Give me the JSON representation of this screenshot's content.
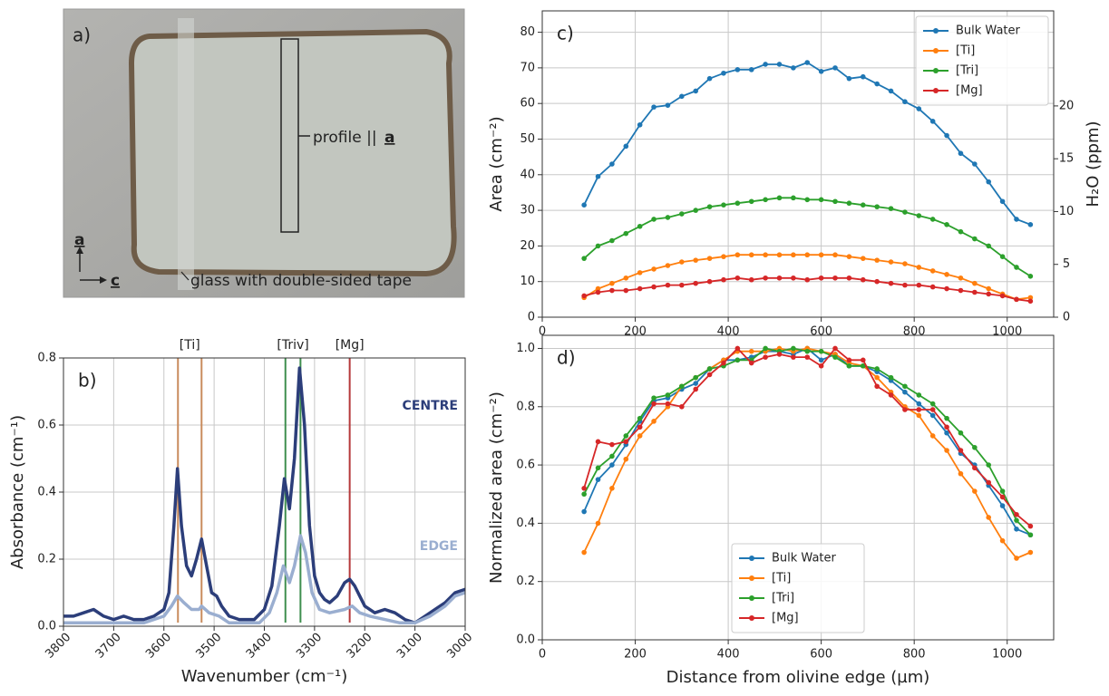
{
  "photo": {
    "panel_label": "a)",
    "profile_label": "profile ||",
    "profile_axis": "a",
    "axis_a": "a",
    "axis_c": "c",
    "glass_label": "glass with double-sided tape"
  },
  "chart_data": [
    {
      "type": "line",
      "panel_label": "b)",
      "xlabel": "Wavenumber (cm⁻¹)",
      "ylabel": "Absorbance (cm⁻¹)",
      "xlim": [
        3800,
        3000
      ],
      "xticks": [
        3800,
        3700,
        3600,
        3500,
        3400,
        3300,
        3200,
        3100,
        3000
      ],
      "ylim": [
        0,
        0.8
      ],
      "yticks": [
        {
          "value": 0,
          "label": "0.0"
        },
        0.2,
        0.4,
        0.6,
        0.8
      ],
      "grid": true,
      "annotations": [
        {
          "text": "[Ti]",
          "color": "#c98b5c",
          "x": [
            3572,
            3525
          ]
        },
        {
          "text": "[Triv]",
          "color": "#3f8f4f",
          "x": [
            3358,
            3328
          ]
        },
        {
          "text": "[Mg]",
          "color": "#b5393a",
          "x": [
            3230
          ]
        }
      ],
      "series": [
        {
          "name": "CENTRE",
          "color": "#2c3e7a",
          "x": [
            3800,
            3780,
            3760,
            3740,
            3720,
            3700,
            3680,
            3660,
            3640,
            3620,
            3600,
            3590,
            3580,
            3573,
            3565,
            3555,
            3545,
            3535,
            3525,
            3515,
            3505,
            3495,
            3485,
            3470,
            3450,
            3420,
            3400,
            3385,
            3370,
            3360,
            3350,
            3340,
            3330,
            3320,
            3310,
            3300,
            3290,
            3280,
            3270,
            3255,
            3240,
            3230,
            3220,
            3210,
            3200,
            3180,
            3160,
            3140,
            3120,
            3100,
            3080,
            3060,
            3040,
            3020,
            3000
          ],
          "values": [
            0.03,
            0.03,
            0.04,
            0.05,
            0.03,
            0.02,
            0.03,
            0.02,
            0.02,
            0.03,
            0.05,
            0.1,
            0.3,
            0.47,
            0.3,
            0.18,
            0.15,
            0.2,
            0.26,
            0.18,
            0.1,
            0.09,
            0.06,
            0.03,
            0.02,
            0.02,
            0.05,
            0.12,
            0.3,
            0.44,
            0.35,
            0.5,
            0.77,
            0.6,
            0.3,
            0.15,
            0.1,
            0.08,
            0.07,
            0.09,
            0.13,
            0.14,
            0.12,
            0.09,
            0.06,
            0.04,
            0.05,
            0.04,
            0.02,
            0.01,
            0.03,
            0.05,
            0.07,
            0.1,
            0.11
          ]
        },
        {
          "name": "EDGE",
          "color": "#9aaed0",
          "x": [
            3800,
            3760,
            3720,
            3680,
            3640,
            3600,
            3585,
            3573,
            3560,
            3545,
            3530,
            3525,
            3510,
            3490,
            3470,
            3440,
            3410,
            3390,
            3375,
            3362,
            3350,
            3340,
            3328,
            3318,
            3305,
            3290,
            3270,
            3240,
            3225,
            3210,
            3190,
            3160,
            3130,
            3100,
            3070,
            3040,
            3020,
            3000
          ],
          "values": [
            0.01,
            0.01,
            0.01,
            0.01,
            0.01,
            0.03,
            0.06,
            0.09,
            0.07,
            0.05,
            0.05,
            0.06,
            0.04,
            0.03,
            0.01,
            0.01,
            0.01,
            0.04,
            0.1,
            0.18,
            0.13,
            0.18,
            0.27,
            0.22,
            0.1,
            0.05,
            0.04,
            0.05,
            0.06,
            0.04,
            0.03,
            0.02,
            0.01,
            0.01,
            0.03,
            0.06,
            0.09,
            0.1
          ]
        }
      ]
    },
    {
      "type": "line",
      "panel_label": "c)",
      "ylabel": "Area (cm⁻²)",
      "y2label": "H₂O (ppm)",
      "xlim": [
        0,
        1100
      ],
      "xticks": [
        0,
        200,
        400,
        600,
        800,
        1000
      ],
      "ylim": [
        0,
        86
      ],
      "yticks": [
        0,
        10,
        20,
        30,
        40,
        50,
        60,
        70,
        80
      ],
      "y2lim": [
        0,
        29
      ],
      "y2ticks": [
        0,
        5,
        10,
        15,
        20
      ],
      "grid": true,
      "markers": true,
      "legend": "upper right",
      "x": [
        90,
        120,
        150,
        180,
        210,
        240,
        270,
        300,
        330,
        360,
        390,
        420,
        450,
        480,
        510,
        540,
        570,
        600,
        630,
        660,
        690,
        720,
        750,
        780,
        810,
        840,
        870,
        900,
        930,
        960,
        990,
        1020,
        1050
      ],
      "series": [
        {
          "name": "Bulk Water",
          "color": "#1f77b4",
          "values": [
            31.5,
            39.5,
            43,
            48,
            54,
            59,
            59.5,
            62,
            63.5,
            67,
            68.5,
            69.5,
            69.5,
            71,
            71,
            70,
            71.5,
            69,
            70,
            67,
            67.5,
            65.5,
            63.5,
            60.5,
            58.5,
            55,
            51,
            46,
            43,
            38,
            32.5,
            27.5,
            26
          ]
        },
        {
          "name": "[Ti]",
          "color": "#ff7f0e",
          "values": [
            5.5,
            8,
            9.5,
            11,
            12.5,
            13.5,
            14.5,
            15.5,
            16,
            16.5,
            17,
            17.5,
            17.5,
            17.5,
            17.5,
            17.5,
            17.5,
            17.5,
            17.5,
            17,
            16.5,
            16,
            15.5,
            15,
            14,
            13,
            12,
            11,
            9.5,
            8,
            6.5,
            5,
            5.5
          ]
        },
        {
          "name": "[Tri]",
          "color": "#2ca02c",
          "values": [
            16.5,
            20,
            21.5,
            23.5,
            25.5,
            27.5,
            28,
            29,
            30,
            31,
            31.5,
            32,
            32.5,
            33,
            33.5,
            33.5,
            33,
            33,
            32.5,
            32,
            31.5,
            31,
            30.5,
            29.5,
            28.5,
            27.5,
            26,
            24,
            22,
            20,
            17,
            14,
            11.5
          ]
        },
        {
          "name": "[Mg]",
          "color": "#d62728",
          "values": [
            6,
            7,
            7.5,
            7.5,
            8,
            8.5,
            9,
            9,
            9.5,
            10,
            10.5,
            11,
            10.5,
            11,
            11,
            11,
            10.5,
            11,
            11,
            11,
            10.5,
            10,
            9.5,
            9,
            9,
            8.5,
            8,
            7.5,
            7,
            6.5,
            6,
            5,
            4.5
          ]
        }
      ]
    },
    {
      "type": "line",
      "panel_label": "d)",
      "xlabel": "Distance from olivine edge (µm)",
      "ylabel": "Normalized area (cm⁻²)",
      "xlim": [
        0,
        1100
      ],
      "xticks": [
        0,
        200,
        400,
        600,
        800,
        1000
      ],
      "ylim": [
        0,
        1.045
      ],
      "yticks": [
        {
          "value": 0,
          "label": "0.0"
        },
        0.2,
        0.4,
        0.6,
        0.8,
        {
          "value": 1,
          "label": "1.0"
        }
      ],
      "grid": true,
      "markers": true,
      "legend": "lower center",
      "x": [
        90,
        120,
        150,
        180,
        210,
        240,
        270,
        300,
        330,
        360,
        390,
        420,
        450,
        480,
        510,
        540,
        570,
        600,
        630,
        660,
        690,
        720,
        750,
        780,
        810,
        840,
        870,
        900,
        930,
        960,
        990,
        1020,
        1050
      ],
      "series": [
        {
          "name": "Bulk Water",
          "color": "#1f77b4",
          "values": [
            0.44,
            0.55,
            0.6,
            0.67,
            0.75,
            0.82,
            0.83,
            0.86,
            0.88,
            0.93,
            0.96,
            0.96,
            0.97,
            0.99,
            0.99,
            0.98,
            1.0,
            0.96,
            0.98,
            0.94,
            0.94,
            0.92,
            0.89,
            0.85,
            0.81,
            0.77,
            0.71,
            0.64,
            0.6,
            0.53,
            0.46,
            0.38,
            0.36
          ]
        },
        {
          "name": "[Ti]",
          "color": "#ff7f0e",
          "values": [
            0.3,
            0.4,
            0.52,
            0.62,
            0.7,
            0.75,
            0.8,
            0.87,
            0.9,
            0.93,
            0.96,
            0.99,
            0.99,
            0.99,
            1.0,
            0.99,
            1.0,
            0.99,
            0.98,
            0.95,
            0.94,
            0.9,
            0.85,
            0.8,
            0.77,
            0.7,
            0.65,
            0.57,
            0.51,
            0.42,
            0.34,
            0.28,
            0.3
          ]
        },
        {
          "name": "[Tri]",
          "color": "#2ca02c",
          "values": [
            0.5,
            0.59,
            0.63,
            0.7,
            0.76,
            0.83,
            0.84,
            0.87,
            0.9,
            0.93,
            0.94,
            0.96,
            0.96,
            1.0,
            0.99,
            1.0,
            0.99,
            0.99,
            0.97,
            0.94,
            0.94,
            0.93,
            0.9,
            0.87,
            0.84,
            0.81,
            0.76,
            0.71,
            0.66,
            0.6,
            0.51,
            0.41,
            0.36
          ]
        },
        {
          "name": "[Mg]",
          "color": "#d62728",
          "values": [
            0.52,
            0.68,
            0.67,
            0.68,
            0.73,
            0.81,
            0.81,
            0.8,
            0.86,
            0.91,
            0.95,
            1.0,
            0.95,
            0.97,
            0.98,
            0.97,
            0.97,
            0.94,
            1.0,
            0.96,
            0.96,
            0.87,
            0.84,
            0.79,
            0.79,
            0.79,
            0.73,
            0.65,
            0.59,
            0.54,
            0.49,
            0.43,
            0.39
          ]
        }
      ]
    }
  ]
}
